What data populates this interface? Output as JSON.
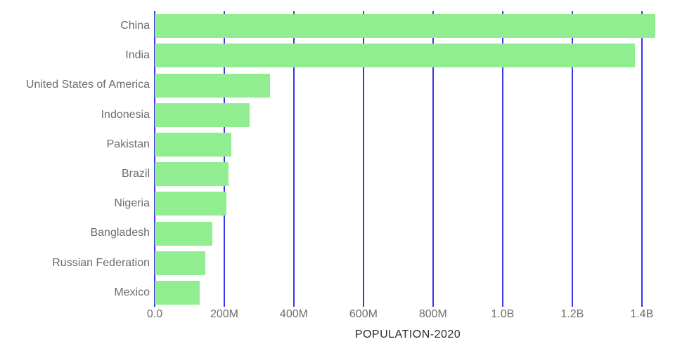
{
  "chart_data": {
    "type": "bar",
    "orientation": "horizontal",
    "title": "POPULATION-2020",
    "categories": [
      "China",
      "India",
      "United States of America",
      "Indonesia",
      "Pakistan",
      "Brazil",
      "Nigeria",
      "Bangladesh",
      "Russian Federation",
      "Mexico"
    ],
    "values_millions": [
      1439.3,
      1380.0,
      331.0,
      273.5,
      220.9,
      212.6,
      206.1,
      164.7,
      145.9,
      128.9
    ],
    "x_axis": {
      "tick_values_millions": [
        0,
        200,
        400,
        600,
        800,
        1000,
        1200,
        1400
      ],
      "tick_labels": [
        "0.0",
        "200M",
        "400M",
        "600M",
        "800M",
        "1.0B",
        "1.2B",
        "1.4B"
      ],
      "range_millions": [
        0,
        1455
      ]
    },
    "layout": {
      "grid": true,
      "legend": false,
      "bars_sorted": "descending"
    },
    "colors": {
      "bar": "#90EE90",
      "gridline": "#3a34ea",
      "tick_label": "#6d6d6d",
      "category_label": "#6d6d6d",
      "title": "#2d2d2d",
      "background": "#ffffff"
    }
  }
}
